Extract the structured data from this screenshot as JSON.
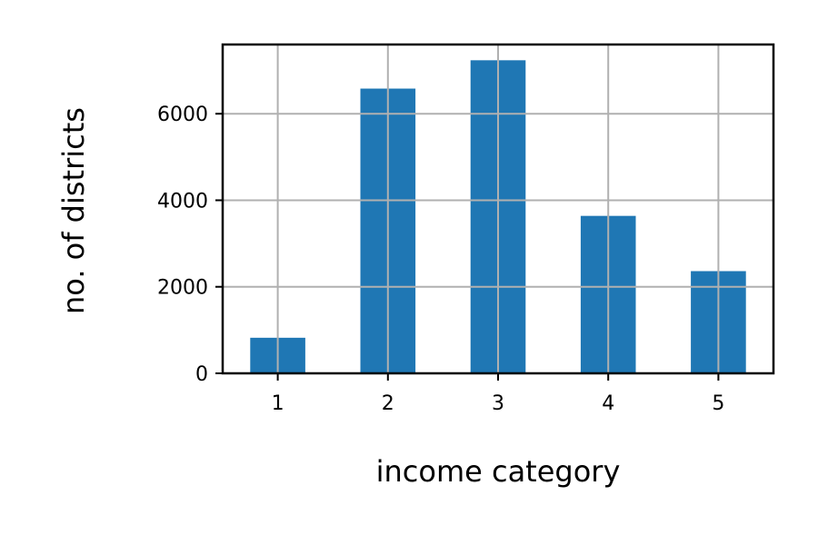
{
  "chart_data": {
    "type": "bar",
    "categories": [
      "1",
      "2",
      "3",
      "4",
      "5"
    ],
    "values": [
      822,
      6581,
      7236,
      3639,
      2362
    ],
    "title": "",
    "xlabel": "income category",
    "ylabel": "no. of districts",
    "ylim": [
      0,
      7600
    ],
    "yticks": [
      0,
      2000,
      4000,
      6000
    ],
    "grid": true,
    "colors": {
      "bar": "#1f77b4",
      "grid": "#b0b0b0",
      "axis": "#000000"
    }
  }
}
